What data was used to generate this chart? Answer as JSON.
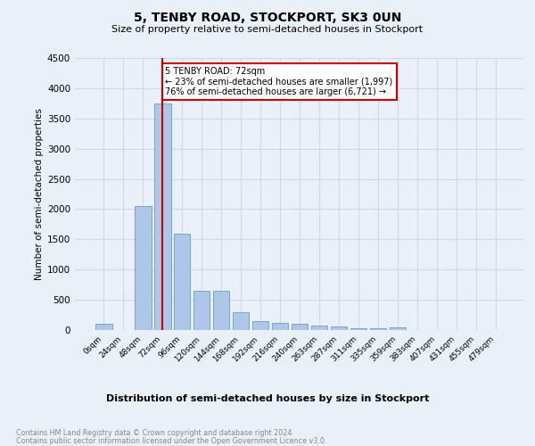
{
  "title": "5, TENBY ROAD, STOCKPORT, SK3 0UN",
  "subtitle": "Size of property relative to semi-detached houses in Stockport",
  "xlabel": "Distribution of semi-detached houses by size in Stockport",
  "ylabel": "Number of semi-detached properties",
  "annotation_title": "5 TENBY ROAD: 72sqm",
  "annotation_line1": "← 23% of semi-detached houses are smaller (1,997)",
  "annotation_line2": "76% of semi-detached houses are larger (6,721) →",
  "footnote1": "Contains HM Land Registry data © Crown copyright and database right 2024.",
  "footnote2": "Contains public sector information licensed under the Open Government Licence v3.0.",
  "bin_labels": [
    "0sqm",
    "24sqm",
    "48sqm",
    "72sqm",
    "96sqm",
    "120sqm",
    "144sqm",
    "168sqm",
    "192sqm",
    "216sqm",
    "240sqm",
    "263sqm",
    "287sqm",
    "311sqm",
    "335sqm",
    "359sqm",
    "383sqm",
    "407sqm",
    "431sqm",
    "455sqm",
    "479sqm"
  ],
  "bar_heights": [
    100,
    0,
    2050,
    3750,
    1600,
    650,
    650,
    300,
    150,
    120,
    100,
    75,
    55,
    30,
    25,
    50,
    5,
    0,
    0,
    0,
    0
  ],
  "bar_color": "#aec6e8",
  "bar_edge_color": "#5a8fc0",
  "vline_color": "#cc0000",
  "vline_x": 3,
  "annotation_box_color": "#ffffff",
  "annotation_box_edge": "#cc0000",
  "grid_color": "#d0d8e8",
  "background_color": "#eaf0f8",
  "ylim": [
    0,
    4500
  ],
  "yticks": [
    0,
    500,
    1000,
    1500,
    2000,
    2500,
    3000,
    3500,
    4000,
    4500
  ]
}
